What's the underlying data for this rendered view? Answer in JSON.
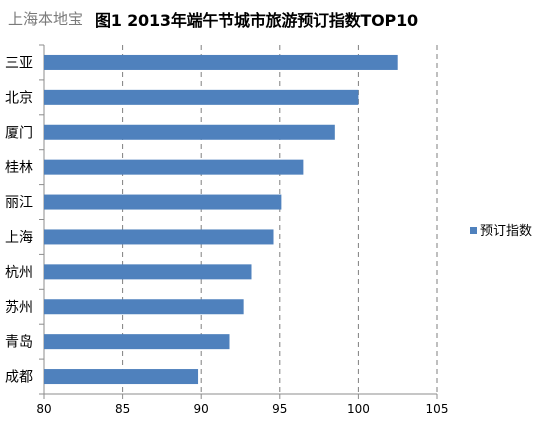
{
  "watermark": "上海本地宝",
  "chart_data": {
    "type": "bar",
    "orientation": "horizontal",
    "title": "图1 2013年端午节城市旅游预订指数TOP10",
    "categories": [
      "三亚",
      "北京",
      "厦门",
      "桂林",
      "丽江",
      "上海",
      "杭州",
      "苏州",
      "青岛",
      "成都"
    ],
    "series": [
      {
        "name": "预订指数",
        "values": [
          102.5,
          100.0,
          98.5,
          96.5,
          95.1,
          94.6,
          93.2,
          92.7,
          91.8,
          89.8
        ]
      }
    ],
    "xlim": [
      80,
      105
    ],
    "xticks": [
      80,
      85,
      90,
      95,
      100,
      105
    ],
    "grid": "vertical dashed",
    "legend_position": "right",
    "bar_color": "#4f81bd"
  }
}
